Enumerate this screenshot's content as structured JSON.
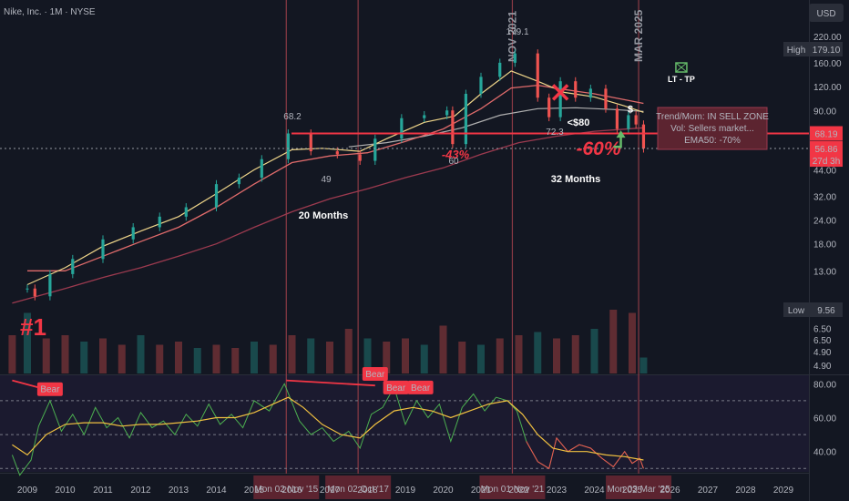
{
  "header": {
    "symbol": "Nike, Inc. · 1M · NYSE",
    "currency": "USD"
  },
  "colors": {
    "background": "#131722",
    "up": "#26a69a",
    "down": "#ef5350",
    "red_accent": "#f23645",
    "ema_fast": "#f0d68a",
    "ema_mid": "#e06b6b",
    "ema_slow": "#b0b0b0",
    "ema_long": "#9c3a4f",
    "rsi_line": "#4caf50",
    "rsi_ma": "#f0c040",
    "vline": "#8a3a44"
  },
  "chart_data": [
    {
      "type": "candlestick",
      "title": "Nike, Inc. · 1M · NYSE",
      "y_scale": "log",
      "ylim": [
        4.3,
        240
      ],
      "xlim": [
        2008.5,
        2029.5
      ],
      "y_ticks": [
        "220.00",
        "160.00",
        "120.00",
        "90.00",
        "68.19",
        "56.86",
        "44.00",
        "32.00",
        "24.00",
        "18.00",
        "13.00",
        "9.56",
        "6.50",
        "4.90"
      ],
      "x_ticks": [
        "2009",
        "2010",
        "2011",
        "2012",
        "2013",
        "2014",
        "2015",
        "2016",
        "2017",
        "2018",
        "2019",
        "2020",
        "2021",
        "2022",
        "2023",
        "2024",
        "2025",
        "2026",
        "2027",
        "2028",
        "2029"
      ],
      "price_path": [
        [
          2009.0,
          10.5
        ],
        [
          2009.2,
          9.56
        ],
        [
          2009.6,
          12.5
        ],
        [
          2010.2,
          15
        ],
        [
          2011.0,
          19
        ],
        [
          2011.8,
          22
        ],
        [
          2012.5,
          25
        ],
        [
          2013.2,
          28
        ],
        [
          2014.0,
          37
        ],
        [
          2014.6,
          40
        ],
        [
          2015.2,
          50
        ],
        [
          2015.9,
          68.2
        ],
        [
          2016.5,
          55
        ],
        [
          2017.2,
          53
        ],
        [
          2017.8,
          49
        ],
        [
          2018.2,
          64
        ],
        [
          2018.9,
          82
        ],
        [
          2019.5,
          85
        ],
        [
          2020.1,
          90
        ],
        [
          2020.25,
          60
        ],
        [
          2020.6,
          110
        ],
        [
          2021.0,
          135
        ],
        [
          2021.5,
          160
        ],
        [
          2021.9,
          179.1
        ],
        [
          2022.5,
          105
        ],
        [
          2022.8,
          83
        ],
        [
          2023.1,
          128
        ],
        [
          2023.5,
          105
        ],
        [
          2023.9,
          117
        ],
        [
          2024.3,
          92
        ],
        [
          2024.6,
          72
        ],
        [
          2024.9,
          85
        ],
        [
          2025.1,
          76
        ],
        [
          2025.3,
          56.86
        ]
      ],
      "candle_samples": [
        [
          2009.0,
          10.5
        ],
        [
          2009.2,
          9.56
        ],
        [
          2009.6,
          12.5
        ],
        [
          2010.2,
          15
        ],
        [
          2011.0,
          19
        ],
        [
          2011.8,
          22
        ],
        [
          2012.5,
          25
        ],
        [
          2013.2,
          28
        ],
        [
          2014.0,
          37
        ],
        [
          2014.6,
          40
        ],
        [
          2015.2,
          50
        ],
        [
          2015.9,
          68.2
        ],
        [
          2016.5,
          55
        ],
        [
          2017.2,
          53
        ],
        [
          2017.8,
          49
        ],
        [
          2018.2,
          64
        ],
        [
          2018.9,
          82
        ],
        [
          2019.5,
          85
        ],
        [
          2020.1,
          90
        ],
        [
          2020.25,
          60
        ],
        [
          2020.6,
          110
        ],
        [
          2021.0,
          135
        ],
        [
          2021.5,
          160
        ],
        [
          2021.9,
          179.1
        ],
        [
          2022.5,
          105
        ],
        [
          2022.8,
          83
        ],
        [
          2023.1,
          128
        ],
        [
          2023.5,
          105
        ],
        [
          2023.9,
          117
        ],
        [
          2024.3,
          92
        ],
        [
          2024.6,
          72
        ],
        [
          2024.9,
          85
        ],
        [
          2025.1,
          76
        ],
        [
          2025.3,
          56.86
        ]
      ],
      "ema_fast": [
        [
          2009.0,
          11
        ],
        [
          2010.0,
          13.5
        ],
        [
          2011.0,
          17.5
        ],
        [
          2012.0,
          21
        ],
        [
          2013.0,
          25
        ],
        [
          2014.0,
          33
        ],
        [
          2015.0,
          44
        ],
        [
          2016.0,
          56
        ],
        [
          2016.8,
          57
        ],
        [
          2017.8,
          55
        ],
        [
          2018.5,
          64
        ],
        [
          2019.5,
          78
        ],
        [
          2020.3,
          84
        ],
        [
          2021.0,
          110
        ],
        [
          2021.8,
          145
        ],
        [
          2022.5,
          128
        ],
        [
          2023.2,
          112
        ],
        [
          2024.0,
          106
        ],
        [
          2024.8,
          95
        ],
        [
          2025.3,
          88
        ]
      ],
      "ema_mid": [
        [
          2009.0,
          13
        ],
        [
          2010.0,
          13
        ],
        [
          2011.0,
          15.5
        ],
        [
          2012.0,
          18.5
        ],
        [
          2013.0,
          22
        ],
        [
          2014.0,
          28
        ],
        [
          2015.0,
          37
        ],
        [
          2016.0,
          48
        ],
        [
          2017.0,
          52
        ],
        [
          2018.0,
          54
        ],
        [
          2019.0,
          62
        ],
        [
          2020.0,
          72
        ],
        [
          2021.0,
          92
        ],
        [
          2021.8,
          118
        ],
        [
          2022.5,
          122
        ],
        [
          2023.2,
          116
        ],
        [
          2024.0,
          110
        ],
        [
          2025.3,
          98
        ]
      ],
      "ema_slow": [
        [
          2017.5,
          58
        ],
        [
          2018.5,
          61
        ],
        [
          2019.5,
          66
        ],
        [
          2020.5,
          73
        ],
        [
          2021.5,
          85
        ],
        [
          2022.5,
          92
        ],
        [
          2023.5,
          93
        ],
        [
          2024.5,
          91
        ],
        [
          2025.3,
          89
        ]
      ],
      "ema_long": [
        [
          2008.6,
          8.8
        ],
        [
          2010.0,
          10.5
        ],
        [
          2011.0,
          12
        ],
        [
          2012.0,
          13.5
        ],
        [
          2013.0,
          15.5
        ],
        [
          2014.0,
          18
        ],
        [
          2015.0,
          22
        ],
        [
          2016.0,
          26.5
        ],
        [
          2017.0,
          31
        ],
        [
          2018.0,
          35
        ],
        [
          2019.0,
          40
        ],
        [
          2020.0,
          45
        ],
        [
          2021.0,
          53
        ],
        [
          2022.0,
          61
        ],
        [
          2023.0,
          66
        ],
        [
          2024.0,
          70
        ],
        [
          2025.3,
          73
        ]
      ],
      "horizontal_levels": [
        {
          "label": "68.19",
          "value": 68.19
        },
        {
          "label": "56.86",
          "value": 56.86
        }
      ],
      "price_tags": {
        "high": {
          "label": "High",
          "value": "179.10"
        },
        "low": {
          "label": "Low",
          "value": "9.56"
        },
        "last": {
          "value": "56.86",
          "countdown": "27d 3h"
        },
        "level": {
          "value": "68.19"
        }
      },
      "vertical_lines": [
        {
          "x": 2015.85,
          "date": "Mon 02 Nov '15"
        },
        {
          "x": 2017.75,
          "date": "Mon 02 Oct '17"
        },
        {
          "x": 2021.83,
          "date": "Mon 01 Nov '21",
          "vertical_label": "NOV 2021"
        },
        {
          "x": 2025.17,
          "date": "Mon 03 Mar '25",
          "vertical_label": "MAR 2025"
        }
      ],
      "annotations": {
        "marker": "#1",
        "pct_a": "-43%",
        "pct_b": "-60%",
        "dur_a": "20 Months",
        "dur_b": "32 Months",
        "lt_tp": "LT - TP",
        "lt80": "<$80",
        "dollar": "$",
        "peak": "179.1",
        "p682": "68.2",
        "p49": "49",
        "p60": "60",
        "p723": "72.3"
      },
      "info_box": {
        "line1": "Trend/Mom: IN SELL ZONE",
        "line2": "Vol: Sellers market...",
        "line3": "EMA50: -70%"
      }
    },
    {
      "type": "bar",
      "name": "volume",
      "volume_ticks": [
        "6.50",
        "4.90"
      ],
      "x": [
        2008.6,
        2009.0,
        2009.5,
        2010.0,
        2010.5,
        2011.0,
        2011.5,
        2012.0,
        2012.5,
        2013.0,
        2013.5,
        2014.0,
        2014.5,
        2015.0,
        2015.5,
        2016.0,
        2016.5,
        2017.0,
        2017.5,
        2018.0,
        2018.5,
        2019.0,
        2019.5,
        2020.0,
        2020.5,
        2021.0,
        2021.5,
        2022.0,
        2022.5,
        2023.0,
        2023.5,
        2024.0,
        2024.5,
        2025.0,
        2025.3
      ],
      "values": [
        0.6,
        0.95,
        0.55,
        0.6,
        0.5,
        0.55,
        0.45,
        0.6,
        0.45,
        0.5,
        0.4,
        0.45,
        0.4,
        0.5,
        0.45,
        0.6,
        0.55,
        0.5,
        0.7,
        0.55,
        0.5,
        0.55,
        0.45,
        0.75,
        0.5,
        0.45,
        0.55,
        0.6,
        0.65,
        0.55,
        0.6,
        0.7,
        1.0,
        0.95,
        0.25
      ]
    },
    {
      "type": "line",
      "name": "rsi",
      "ylim": [
        28,
        85
      ],
      "y_ticks": [
        "80.00",
        "60.00",
        "40.00"
      ],
      "levels": [
        70,
        50,
        30
      ],
      "rsi": [
        [
          2008.6,
          38
        ],
        [
          2008.8,
          26
        ],
        [
          2009.1,
          35
        ],
        [
          2009.3,
          55
        ],
        [
          2009.6,
          70
        ],
        [
          2009.9,
          52
        ],
        [
          2010.2,
          62
        ],
        [
          2010.5,
          50
        ],
        [
          2010.8,
          66
        ],
        [
          2011.1,
          54
        ],
        [
          2011.4,
          60
        ],
        [
          2011.7,
          48
        ],
        [
          2012.0,
          63
        ],
        [
          2012.3,
          54
        ],
        [
          2012.6,
          58
        ],
        [
          2012.9,
          50
        ],
        [
          2013.2,
          62
        ],
        [
          2013.5,
          55
        ],
        [
          2013.8,
          68
        ],
        [
          2014.1,
          56
        ],
        [
          2014.4,
          62
        ],
        [
          2014.7,
          54
        ],
        [
          2015.0,
          70
        ],
        [
          2015.4,
          64
        ],
        [
          2015.8,
          80
        ],
        [
          2016.2,
          58
        ],
        [
          2016.5,
          50
        ],
        [
          2016.8,
          54
        ],
        [
          2017.1,
          46
        ],
        [
          2017.5,
          52
        ],
        [
          2017.8,
          42
        ],
        [
          2018.1,
          62
        ],
        [
          2018.4,
          66
        ],
        [
          2018.7,
          78
        ],
        [
          2019.0,
          56
        ],
        [
          2019.3,
          70
        ],
        [
          2019.6,
          60
        ],
        [
          2019.9,
          68
        ],
        [
          2020.2,
          46
        ],
        [
          2020.5,
          66
        ],
        [
          2020.8,
          74
        ],
        [
          2021.1,
          64
        ],
        [
          2021.4,
          72
        ],
        [
          2021.7,
          70
        ],
        [
          2021.95,
          64
        ],
        [
          2022.2,
          46
        ],
        [
          2022.5,
          34
        ],
        [
          2022.8,
          30
        ],
        [
          2023.0,
          48
        ],
        [
          2023.3,
          40
        ],
        [
          2023.6,
          44
        ],
        [
          2023.9,
          42
        ],
        [
          2024.2,
          36
        ],
        [
          2024.5,
          31
        ],
        [
          2024.8,
          40
        ],
        [
          2025.0,
          33
        ],
        [
          2025.2,
          36
        ],
        [
          2025.3,
          30
        ]
      ],
      "rsi_ma": [
        [
          2008.6,
          44
        ],
        [
          2009.0,
          38
        ],
        [
          2009.5,
          50
        ],
        [
          2010.0,
          56
        ],
        [
          2010.5,
          57
        ],
        [
          2011.0,
          57
        ],
        [
          2011.5,
          55
        ],
        [
          2012.0,
          56
        ],
        [
          2012.5,
          56
        ],
        [
          2013.0,
          57
        ],
        [
          2013.5,
          58
        ],
        [
          2014.0,
          60
        ],
        [
          2014.5,
          60
        ],
        [
          2015.0,
          63
        ],
        [
          2015.5,
          68
        ],
        [
          2015.9,
          72
        ],
        [
          2016.3,
          66
        ],
        [
          2016.8,
          56
        ],
        [
          2017.3,
          50
        ],
        [
          2017.8,
          48
        ],
        [
          2018.2,
          56
        ],
        [
          2018.7,
          64
        ],
        [
          2019.2,
          66
        ],
        [
          2019.7,
          64
        ],
        [
          2020.2,
          60
        ],
        [
          2020.7,
          64
        ],
        [
          2021.2,
          68
        ],
        [
          2021.7,
          70
        ],
        [
          2022.1,
          62
        ],
        [
          2022.5,
          50
        ],
        [
          2022.9,
          42
        ],
        [
          2023.3,
          40
        ],
        [
          2023.8,
          40
        ],
        [
          2024.3,
          38
        ],
        [
          2024.8,
          37
        ],
        [
          2025.3,
          35
        ]
      ],
      "bear_labels": [
        {
          "text": "Bear",
          "x": 2009.6,
          "y": 76
        },
        {
          "text": "Bear",
          "x": 2018.2,
          "y": 85
        },
        {
          "text": "Bear",
          "x": 2018.75,
          "y": 77
        },
        {
          "text": "Bear",
          "x": 2019.4,
          "y": 77
        }
      ],
      "trendline_a": [
        [
          2008.6,
          82
        ],
        [
          2009.6,
          76
        ]
      ],
      "trendline_b": [
        [
          2015.85,
          82
        ],
        [
          2018.2,
          79
        ]
      ]
    }
  ]
}
